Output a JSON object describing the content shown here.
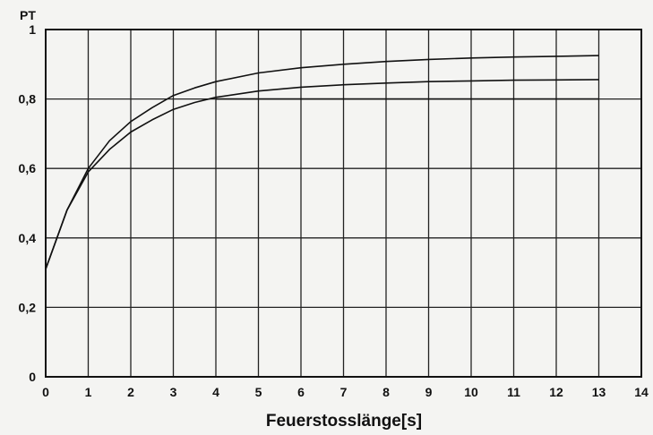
{
  "chart_data": {
    "type": "line",
    "title": "",
    "ylabel": "PT",
    "xlabel": "Feuerstosslänge[s]",
    "xlim": [
      0,
      14
    ],
    "ylim": [
      0,
      1
    ],
    "grid": true,
    "x_ticks": [
      0,
      1,
      2,
      3,
      4,
      5,
      6,
      7,
      8,
      9,
      10,
      11,
      12,
      13,
      14
    ],
    "y_ticks": [
      "0",
      "0,2",
      "0,4",
      "0,6",
      "0,8",
      "1"
    ],
    "series": [
      {
        "x": [
          0,
          0.5,
          1,
          1.5,
          2,
          2.5,
          3,
          3.5,
          4,
          5,
          6,
          7,
          8,
          9,
          10,
          11,
          12,
          13
        ],
        "values": [
          0.31,
          0.48,
          0.6,
          0.68,
          0.735,
          0.775,
          0.81,
          0.832,
          0.85,
          0.875,
          0.89,
          0.9,
          0.908,
          0.914,
          0.918,
          0.921,
          0.923,
          0.925
        ]
      },
      {
        "x": [
          0,
          0.5,
          1,
          1.5,
          2,
          2.5,
          3,
          3.5,
          4,
          5,
          6,
          7,
          8,
          9,
          10,
          11,
          12,
          13
        ],
        "values": [
          0.31,
          0.48,
          0.59,
          0.655,
          0.705,
          0.74,
          0.77,
          0.79,
          0.805,
          0.823,
          0.834,
          0.841,
          0.846,
          0.85,
          0.852,
          0.854,
          0.855,
          0.856
        ]
      }
    ],
    "reference_line": {
      "y": 0.8,
      "x_range": [
        4,
        13
      ]
    }
  }
}
